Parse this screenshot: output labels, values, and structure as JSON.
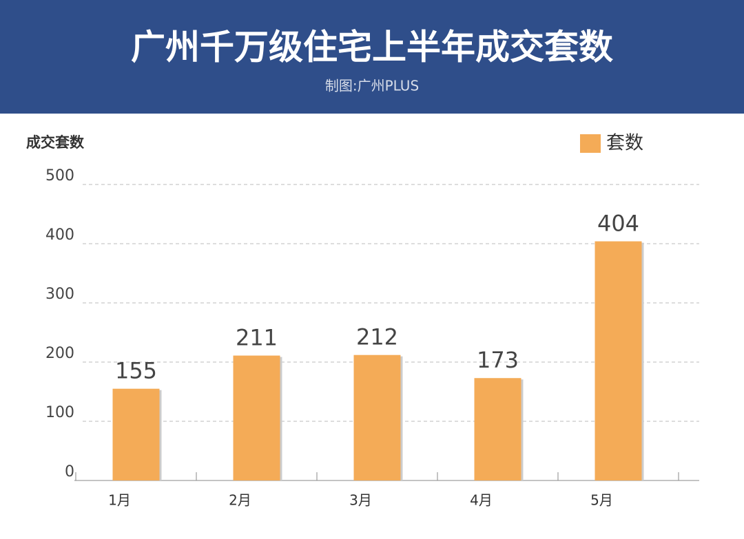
{
  "chart_data": {
    "type": "bar",
    "title": "广州千万级住宅上半年成交套数",
    "subtitle": "制图:广州PLUS",
    "y_label": "成交套数",
    "categories": [
      "1月",
      "2月",
      "3月",
      "4月",
      "5月"
    ],
    "series": [
      {
        "name": "套数",
        "color": "#f4ab57",
        "values": [
          155,
          211,
          212,
          173,
          404
        ]
      }
    ],
    "ylim": [
      0,
      500
    ],
    "yticks": [
      0,
      100,
      200,
      300,
      400,
      500
    ],
    "grid": true,
    "legend": "top-right"
  }
}
